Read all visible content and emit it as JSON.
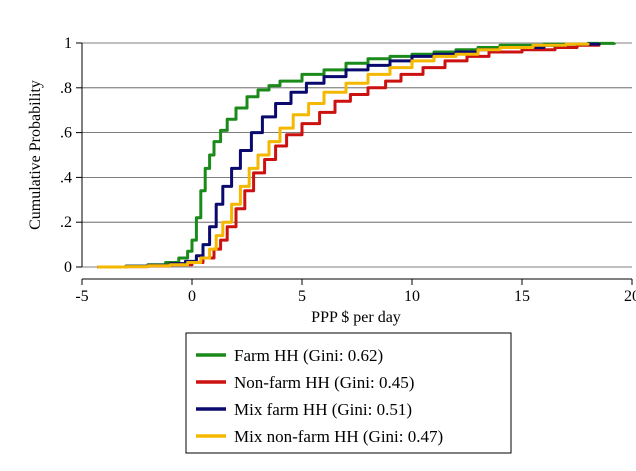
{
  "chart_data": {
    "type": "line",
    "title": "",
    "xlabel": "PPP $ per day",
    "ylabel": "Cumulative Probability",
    "xlim": [
      -5,
      20
    ],
    "ylim": [
      0,
      1
    ],
    "x_ticks": [
      -5,
      0,
      5,
      10,
      15,
      20
    ],
    "x_tick_labels": [
      "-5",
      "0",
      "5",
      "10",
      "15",
      "20"
    ],
    "y_ticks": [
      0,
      0.2,
      0.4,
      0.6,
      0.8,
      1
    ],
    "y_tick_labels": [
      "0",
      ".2",
      ".4",
      ".6",
      ".8",
      "1"
    ],
    "grid": "horizontal",
    "legend_placement": "bottom",
    "series": [
      {
        "name": "Farm HH (Gini: 0.62)",
        "color": "#1a8a1a",
        "points": [
          [
            -4.3,
            0
          ],
          [
            -3,
            0.004
          ],
          [
            -2,
            0.01
          ],
          [
            -1.2,
            0.02
          ],
          [
            -0.6,
            0.04
          ],
          [
            -0.2,
            0.07
          ],
          [
            0,
            0.12
          ],
          [
            0.2,
            0.22
          ],
          [
            0.4,
            0.34
          ],
          [
            0.6,
            0.44
          ],
          [
            0.8,
            0.5
          ],
          [
            1.0,
            0.56
          ],
          [
            1.3,
            0.61
          ],
          [
            1.6,
            0.66
          ],
          [
            2.0,
            0.71
          ],
          [
            2.5,
            0.76
          ],
          [
            3.0,
            0.79
          ],
          [
            3.5,
            0.81
          ],
          [
            4.0,
            0.83
          ],
          [
            5.0,
            0.86
          ],
          [
            6.0,
            0.88
          ],
          [
            7.0,
            0.91
          ],
          [
            8.0,
            0.93
          ],
          [
            9.0,
            0.94
          ],
          [
            10.0,
            0.95
          ],
          [
            11.0,
            0.96
          ],
          [
            12.0,
            0.97
          ],
          [
            13.0,
            0.98
          ],
          [
            14.0,
            0.99
          ],
          [
            16.0,
            0.995
          ],
          [
            18.0,
            0.998
          ],
          [
            19.2,
            1.0
          ]
        ]
      },
      {
        "name": "Non-farm HH (Gini: 0.45)",
        "color": "#cc1111",
        "points": [
          [
            -4.3,
            0
          ],
          [
            -3,
            0.002
          ],
          [
            -2,
            0.005
          ],
          [
            -1,
            0.01
          ],
          [
            0,
            0.02
          ],
          [
            0.5,
            0.04
          ],
          [
            1.0,
            0.08
          ],
          [
            1.3,
            0.12
          ],
          [
            1.6,
            0.18
          ],
          [
            2.0,
            0.26
          ],
          [
            2.4,
            0.34
          ],
          [
            2.8,
            0.42
          ],
          [
            3.3,
            0.48
          ],
          [
            3.8,
            0.54
          ],
          [
            4.3,
            0.59
          ],
          [
            5.0,
            0.64
          ],
          [
            5.8,
            0.69
          ],
          [
            6.5,
            0.74
          ],
          [
            7.2,
            0.77
          ],
          [
            8.0,
            0.8
          ],
          [
            8.8,
            0.83
          ],
          [
            9.5,
            0.86
          ],
          [
            10.5,
            0.89
          ],
          [
            11.5,
            0.92
          ],
          [
            12.5,
            0.94
          ],
          [
            13.5,
            0.96
          ],
          [
            15.0,
            0.97
          ],
          [
            16.5,
            0.98
          ],
          [
            17.5,
            0.99
          ],
          [
            18.5,
            1.0
          ]
        ]
      },
      {
        "name": "Mix farm HH (Gini: 0.51)",
        "color": "#0a0a6e",
        "points": [
          [
            -4.3,
            0
          ],
          [
            -3,
            0.003
          ],
          [
            -2,
            0.008
          ],
          [
            -1,
            0.015
          ],
          [
            -0.3,
            0.025
          ],
          [
            0.2,
            0.05
          ],
          [
            0.5,
            0.1
          ],
          [
            0.8,
            0.18
          ],
          [
            1.1,
            0.28
          ],
          [
            1.4,
            0.36
          ],
          [
            1.8,
            0.44
          ],
          [
            2.2,
            0.52
          ],
          [
            2.7,
            0.6
          ],
          [
            3.2,
            0.67
          ],
          [
            3.8,
            0.73
          ],
          [
            4.5,
            0.78
          ],
          [
            5.2,
            0.82
          ],
          [
            6.0,
            0.85
          ],
          [
            7.0,
            0.88
          ],
          [
            8.0,
            0.9
          ],
          [
            9.0,
            0.92
          ],
          [
            10.0,
            0.94
          ],
          [
            11.0,
            0.95
          ],
          [
            12.0,
            0.96
          ],
          [
            13.0,
            0.97
          ],
          [
            14.0,
            0.98
          ],
          [
            16.0,
            0.99
          ],
          [
            17.0,
            0.995
          ],
          [
            18.5,
            1.0
          ]
        ]
      },
      {
        "name": "Mix non-farm HH (Gini: 0.47)",
        "color": "#f5b800",
        "points": [
          [
            -4.3,
            0
          ],
          [
            -3,
            0.002
          ],
          [
            -2,
            0.006
          ],
          [
            -1,
            0.01
          ],
          [
            -0.2,
            0.02
          ],
          [
            0.4,
            0.04
          ],
          [
            0.8,
            0.08
          ],
          [
            1.1,
            0.14
          ],
          [
            1.4,
            0.2
          ],
          [
            1.8,
            0.28
          ],
          [
            2.2,
            0.36
          ],
          [
            2.6,
            0.44
          ],
          [
            3.0,
            0.5
          ],
          [
            3.5,
            0.56
          ],
          [
            4.0,
            0.62
          ],
          [
            4.6,
            0.68
          ],
          [
            5.3,
            0.73
          ],
          [
            6.0,
            0.78
          ],
          [
            7.0,
            0.82
          ],
          [
            8.0,
            0.86
          ],
          [
            9.0,
            0.89
          ],
          [
            10.0,
            0.92
          ],
          [
            11.0,
            0.94
          ],
          [
            12.0,
            0.95
          ],
          [
            13.0,
            0.97
          ],
          [
            14.0,
            0.98
          ],
          [
            15.5,
            0.99
          ],
          [
            17.0,
            0.995
          ],
          [
            18.0,
            1.0
          ]
        ]
      }
    ]
  }
}
